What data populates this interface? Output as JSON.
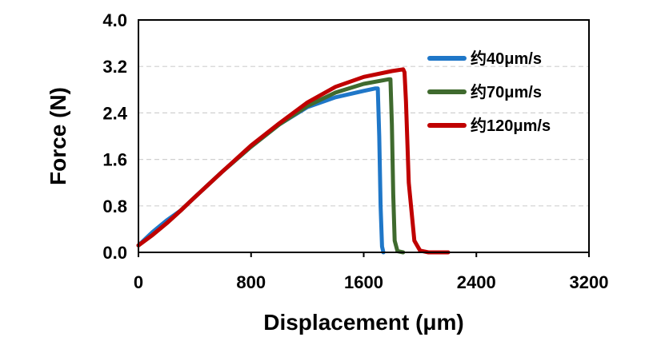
{
  "chart_data": {
    "type": "line",
    "title": "",
    "xlabel": "Displacement (μm)",
    "ylabel": "Force (N)",
    "xlim": [
      0,
      3200
    ],
    "ylim": [
      0,
      4.0
    ],
    "x_ticks": [
      "0",
      "800",
      "1600",
      "2400",
      "3200"
    ],
    "y_ticks": [
      "0.0",
      "0.8",
      "1.6",
      "2.4",
      "3.2",
      "4.0"
    ],
    "grid": "horizontal dashed",
    "legend_position": "top-right",
    "series": [
      {
        "name": "约40μm/s",
        "color": "#1F77C8",
        "x": [
          0,
          100,
          200,
          300,
          400,
          600,
          800,
          1000,
          1200,
          1400,
          1600,
          1680,
          1700,
          1710,
          1720,
          1730,
          1740
        ],
        "y": [
          0.12,
          0.35,
          0.55,
          0.72,
          0.95,
          1.4,
          1.82,
          2.2,
          2.5,
          2.67,
          2.78,
          2.82,
          2.82,
          2.0,
          0.8,
          0.1,
          0.0
        ]
      },
      {
        "name": "约70μm/s",
        "color": "#3F6A2E",
        "x": [
          0,
          100,
          200,
          300,
          400,
          600,
          800,
          1000,
          1200,
          1400,
          1600,
          1780,
          1790,
          1800,
          1810,
          1820,
          1840,
          1880
        ],
        "y": [
          0.12,
          0.3,
          0.5,
          0.72,
          0.95,
          1.4,
          1.82,
          2.2,
          2.52,
          2.75,
          2.9,
          2.98,
          2.98,
          2.2,
          1.0,
          0.2,
          0.02,
          0.0
        ]
      },
      {
        "name": "约120μm/s",
        "color": "#C00000",
        "x": [
          0,
          100,
          200,
          300,
          400,
          600,
          800,
          1000,
          1200,
          1400,
          1600,
          1800,
          1880,
          1890,
          1900,
          1920,
          1960,
          2000,
          2060,
          2200
        ],
        "y": [
          0.12,
          0.3,
          0.5,
          0.72,
          0.95,
          1.4,
          1.84,
          2.22,
          2.58,
          2.85,
          3.02,
          3.12,
          3.15,
          3.1,
          2.6,
          1.2,
          0.2,
          0.03,
          0.0,
          0.0
        ]
      }
    ]
  }
}
